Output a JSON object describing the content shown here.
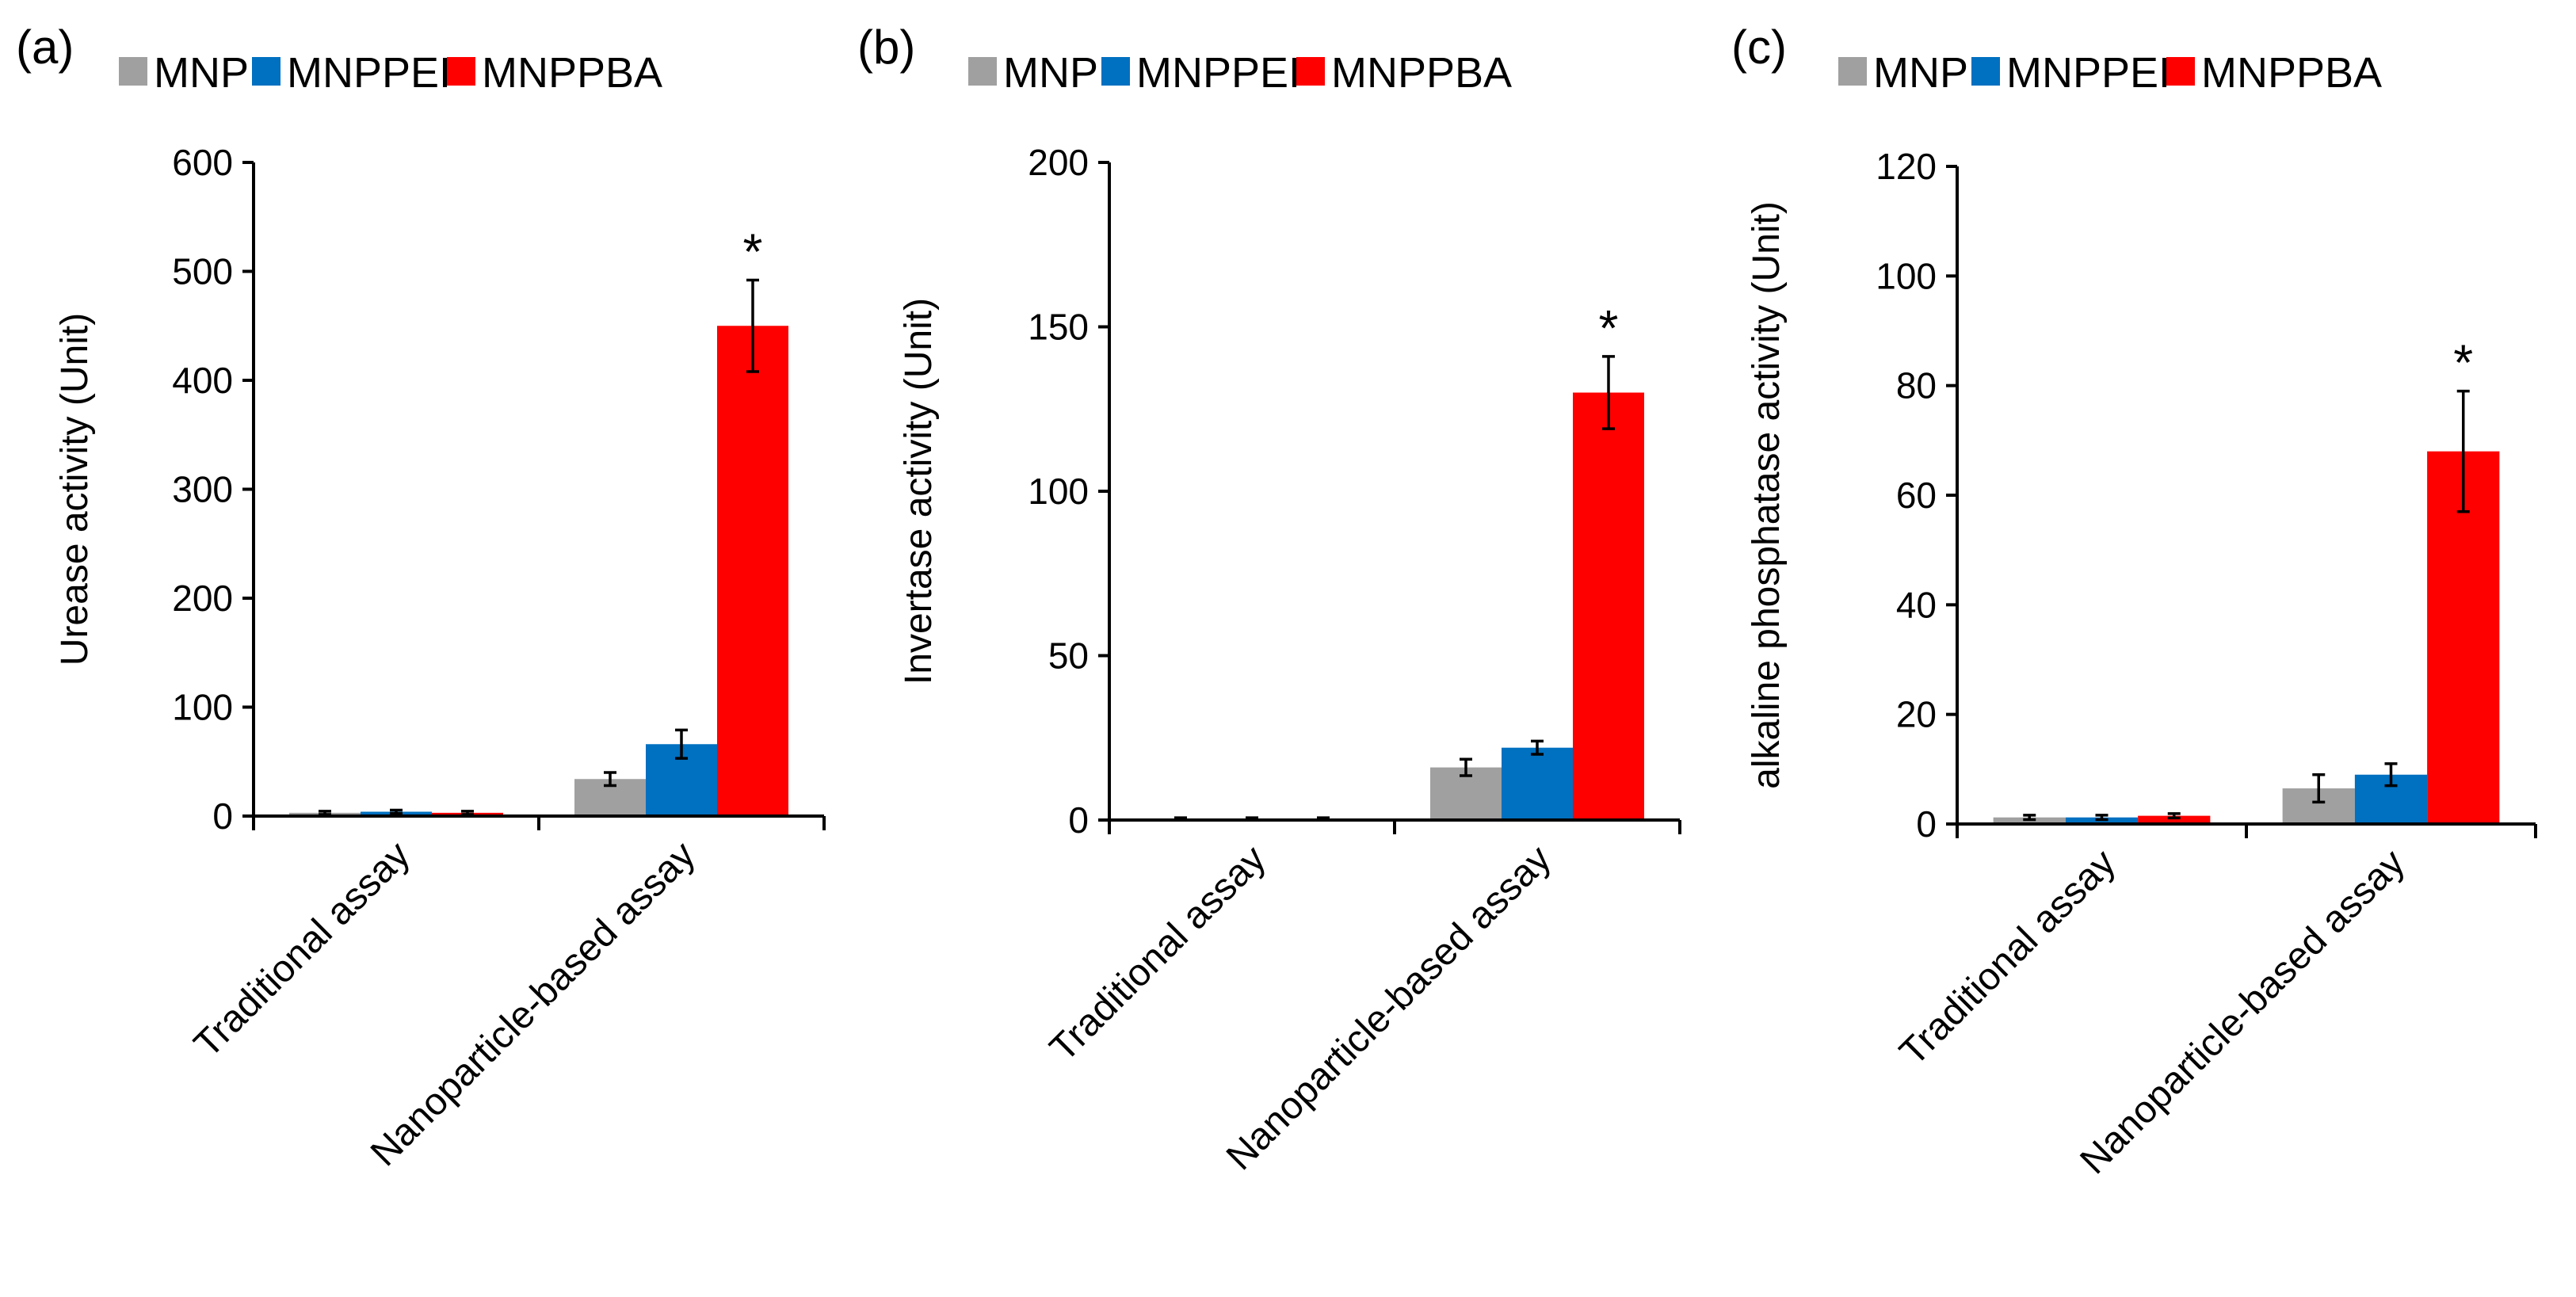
{
  "figure": {
    "colors": {
      "MNP": "#A0A0A0",
      "MNPPEI": "#0070C0",
      "MNPPBA": "#FF0000"
    }
  },
  "chart_data": [
    {
      "type": "bar",
      "panel_label": "(a)",
      "categories": [
        "Traditional assay",
        "Nanoparticle-based assay"
      ],
      "series": [
        {
          "name": "MNP",
          "values": [
            3,
            34
          ],
          "errors": [
            1.5,
            6
          ]
        },
        {
          "name": "MNPPEI",
          "values": [
            4,
            66
          ],
          "errors": [
            1.5,
            13
          ]
        },
        {
          "name": "MNPPBA",
          "values": [
            3,
            450
          ],
          "errors": [
            1.5,
            42
          ]
        }
      ],
      "ylabel": "Urease activity (Unit)",
      "ylim": [
        0,
        600
      ],
      "yticks": [
        0,
        100,
        200,
        300,
        400,
        500,
        600
      ],
      "ytick_labels": [
        "0",
        "100",
        "200",
        "300",
        "400",
        "500",
        "600"
      ],
      "annotation": "*",
      "legend": "top"
    },
    {
      "type": "bar",
      "panel_label": "(b)",
      "categories": [
        "Traditional assay",
        "Nanoparticle-based assay"
      ],
      "series": [
        {
          "name": "MNP",
          "values": [
            0.4,
            16
          ],
          "errors": [
            0.3,
            2.5
          ]
        },
        {
          "name": "MNPPEI",
          "values": [
            0.4,
            22
          ],
          "errors": [
            0.3,
            2
          ]
        },
        {
          "name": "MNPPBA",
          "values": [
            0.4,
            130
          ],
          "errors": [
            0.3,
            11
          ]
        }
      ],
      "ylabel": "Invertase activity (Unit)",
      "ylim": [
        0,
        200
      ],
      "yticks": [
        0,
        50,
        100,
        150,
        200
      ],
      "ytick_labels": [
        "0",
        "50",
        "100",
        "150",
        "200"
      ],
      "annotation": "*",
      "legend": "top"
    },
    {
      "type": "bar",
      "panel_label": "(c)",
      "categories": [
        "Traditional assay",
        "Nanoparticle-based assay"
      ],
      "series": [
        {
          "name": "MNP",
          "values": [
            1.2,
            6.5
          ],
          "errors": [
            0.4,
            2.5
          ]
        },
        {
          "name": "MNPPEI",
          "values": [
            1.2,
            9
          ],
          "errors": [
            0.4,
            2
          ]
        },
        {
          "name": "MNPPBA",
          "values": [
            1.5,
            68
          ],
          "errors": [
            0.4,
            11
          ]
        }
      ],
      "ylabel": "alkaline phosphatase activity (Unit)",
      "ylim": [
        0,
        120
      ],
      "yticks": [
        0,
        20,
        40,
        60,
        80,
        100,
        120
      ],
      "ytick_labels": [
        "0",
        "20",
        "40",
        "60",
        "80",
        "100",
        "120"
      ],
      "annotation": "*",
      "legend": "top"
    }
  ]
}
